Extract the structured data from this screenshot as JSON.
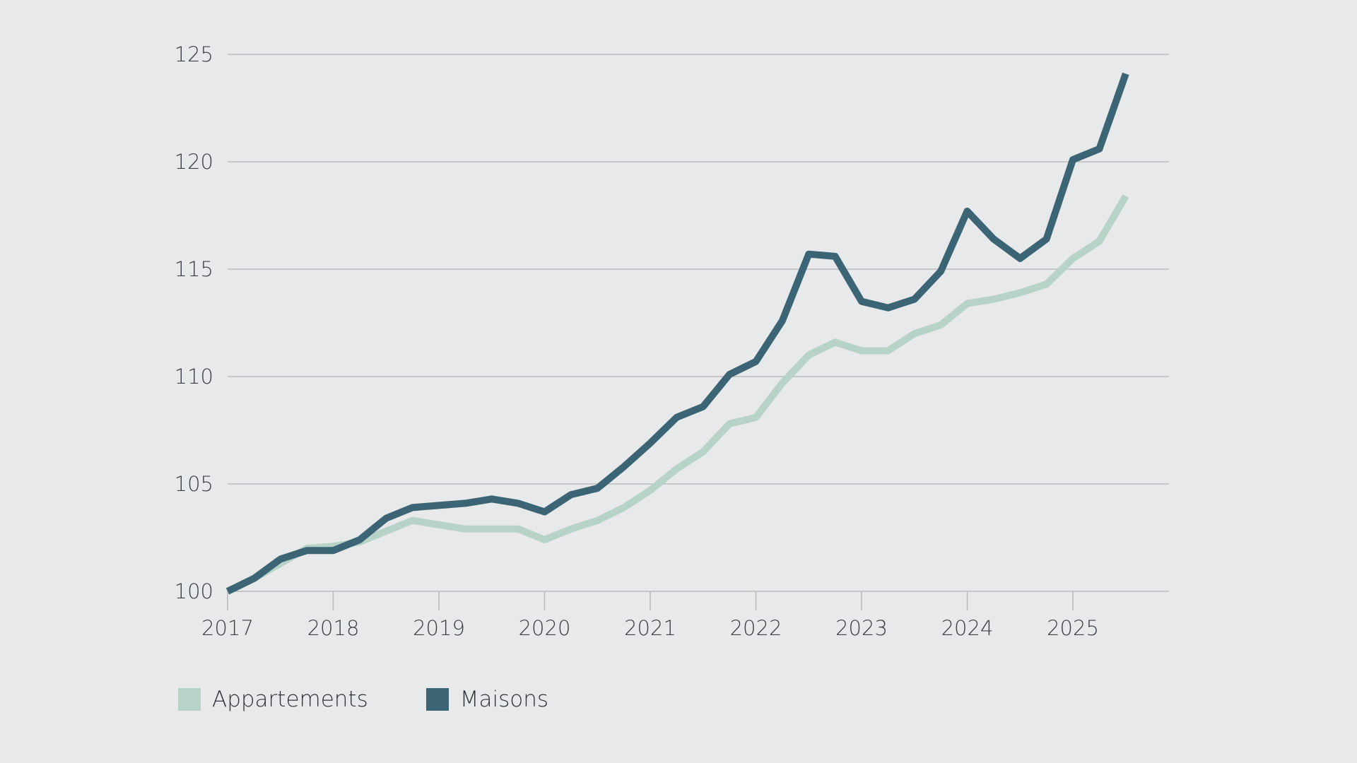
{
  "chart_data": {
    "type": "line",
    "title": "",
    "xlabel": "",
    "ylabel": "",
    "ylim": [
      100,
      125
    ],
    "xlim": [
      2017,
      2025.9
    ],
    "yticks": [
      100,
      105,
      110,
      115,
      120,
      125
    ],
    "xticks": [
      "2017",
      "2018",
      "2019",
      "2020",
      "2021",
      "2022",
      "2023",
      "2024",
      "2025"
    ],
    "grid": true,
    "legend_position": "bottom-left",
    "x": [
      2017.0,
      2017.25,
      2017.5,
      2017.75,
      2018.0,
      2018.25,
      2018.5,
      2018.75,
      2019.0,
      2019.25,
      2019.5,
      2019.75,
      2020.0,
      2020.25,
      2020.5,
      2020.75,
      2021.0,
      2021.25,
      2021.5,
      2021.75,
      2022.0,
      2022.25,
      2022.5,
      2022.75,
      2023.0,
      2023.25,
      2023.5,
      2023.75,
      2024.0,
      2024.25,
      2024.5,
      2024.75,
      2025.0,
      2025.25,
      2025.5
    ],
    "series": [
      {
        "name": "Appartements",
        "color": "#b7d2c7",
        "values": [
          100.0,
          100.6,
          101.3,
          102.0,
          102.1,
          102.3,
          102.8,
          103.3,
          103.1,
          102.9,
          102.9,
          102.9,
          102.4,
          102.9,
          103.3,
          103.9,
          104.7,
          105.7,
          106.5,
          107.8,
          108.1,
          109.7,
          111.0,
          111.6,
          111.2,
          111.2,
          112.0,
          112.4,
          113.4,
          113.6,
          113.9,
          114.3,
          115.5,
          116.3,
          118.4
        ]
      },
      {
        "name": "Maisons",
        "color": "#3b6574",
        "values": [
          100.0,
          100.6,
          101.5,
          101.9,
          101.9,
          102.4,
          103.4,
          103.9,
          104.0,
          104.1,
          104.3,
          104.1,
          103.7,
          104.5,
          104.8,
          105.8,
          106.9,
          108.1,
          108.6,
          110.1,
          110.7,
          112.6,
          115.7,
          115.6,
          113.5,
          113.2,
          113.6,
          114.9,
          117.7,
          116.4,
          115.5,
          116.4,
          120.1,
          120.6,
          124.1
        ]
      }
    ]
  }
}
